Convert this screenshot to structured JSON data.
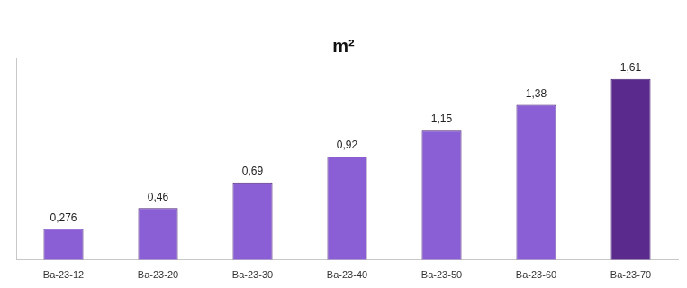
{
  "chart_data": {
    "type": "bar",
    "title": "m²",
    "categories": [
      "Ba-23-12",
      "Ba-23-20",
      "Ba-23-30",
      "Ba-23-40",
      "Ba-23-50",
      "Ba-23-60",
      "Ba-23-70"
    ],
    "values": [
      0.276,
      0.46,
      0.69,
      0.92,
      1.15,
      1.38,
      1.61
    ],
    "value_labels": [
      "0,276",
      "0,46",
      "0,69",
      "0,92",
      "1,15",
      "1,38",
      "1,61"
    ],
    "colors": [
      "#8a5ed4",
      "#8a5ed4",
      "#8a5ed4",
      "#8a5ed4",
      "#8a5ed4",
      "#8a5ed4",
      "#5a2a8c"
    ],
    "ylim": [
      0,
      1.8
    ],
    "grid": false,
    "data_labels": true,
    "tick_labels": "x"
  }
}
